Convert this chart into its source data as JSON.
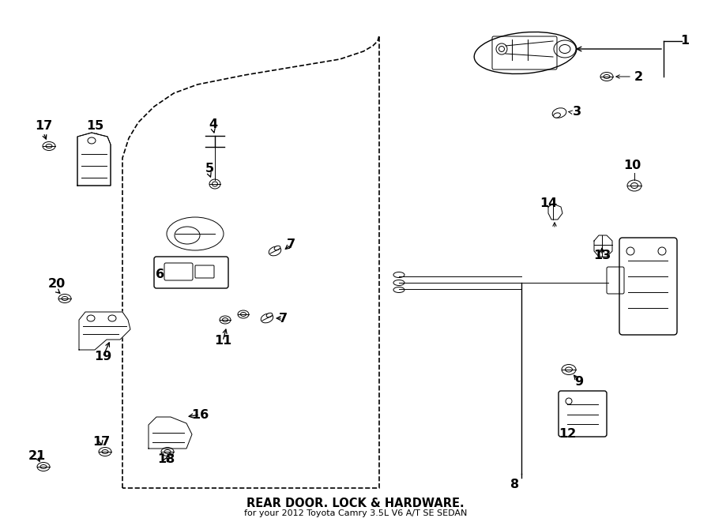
{
  "title": "REAR DOOR. LOCK & HARDWARE.",
  "subtitle": "for your 2012 Toyota Camry 3.5L V6 A/T SE SEDAN",
  "bg_color": "#ffffff",
  "figsize": [
    9.0,
    6.61
  ],
  "dpi": 100,
  "door_outline": {
    "x": [
      155,
      155,
      163,
      175,
      195,
      220,
      250,
      310,
      370,
      430,
      460,
      472,
      478,
      480,
      480,
      155
    ],
    "y": [
      618,
      200,
      175,
      155,
      135,
      118,
      107,
      95,
      85,
      75,
      65,
      58,
      52,
      45,
      618,
      618
    ]
  },
  "labels": [
    [
      "1",
      867,
      52
    ],
    [
      "2",
      808,
      97
    ],
    [
      "3",
      730,
      142
    ],
    [
      "4",
      270,
      157
    ],
    [
      "5",
      265,
      213
    ],
    [
      "6",
      203,
      348
    ],
    [
      "7",
      368,
      310
    ],
    [
      "7",
      358,
      403
    ],
    [
      "8",
      652,
      614
    ],
    [
      "9",
      733,
      483
    ],
    [
      "10",
      800,
      210
    ],
    [
      "11",
      282,
      432
    ],
    [
      "12",
      718,
      550
    ],
    [
      "13",
      762,
      323
    ],
    [
      "14",
      694,
      258
    ],
    [
      "15",
      120,
      160
    ],
    [
      "16",
      253,
      525
    ],
    [
      "17",
      55,
      160
    ],
    [
      "17",
      128,
      560
    ],
    [
      "18",
      210,
      582
    ],
    [
      "19",
      130,
      452
    ],
    [
      "20",
      72,
      360
    ],
    [
      "21",
      47,
      578
    ]
  ]
}
